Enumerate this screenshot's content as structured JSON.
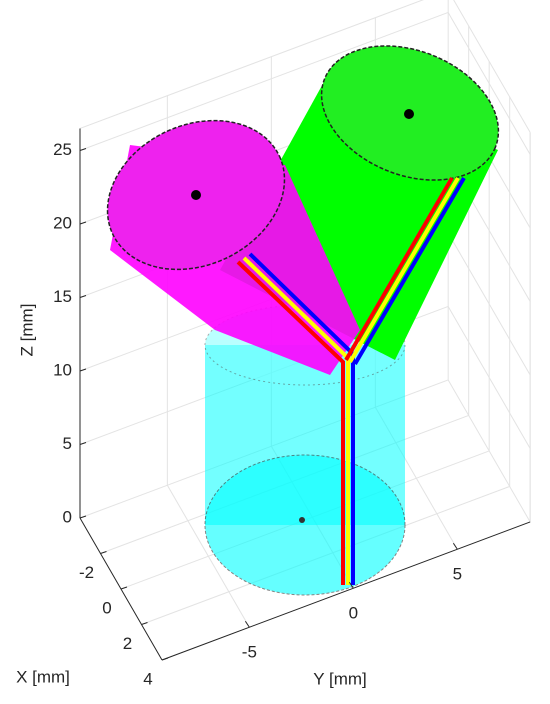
{
  "chart_data": {
    "type": "scatter3d",
    "xlabel": "X [mm]",
    "ylabel": "Y [mm]",
    "zlabel": "Z [mm]",
    "xlim": [
      -4,
      4
    ],
    "ylim": [
      -9.2,
      8.5
    ],
    "zlim": [
      0,
      26.5
    ],
    "xticks": [
      -2,
      0,
      2,
      4
    ],
    "yticks": [
      -5,
      0,
      5
    ],
    "zticks": [
      0,
      5,
      10,
      15,
      20,
      25
    ],
    "grid": true
  }
}
